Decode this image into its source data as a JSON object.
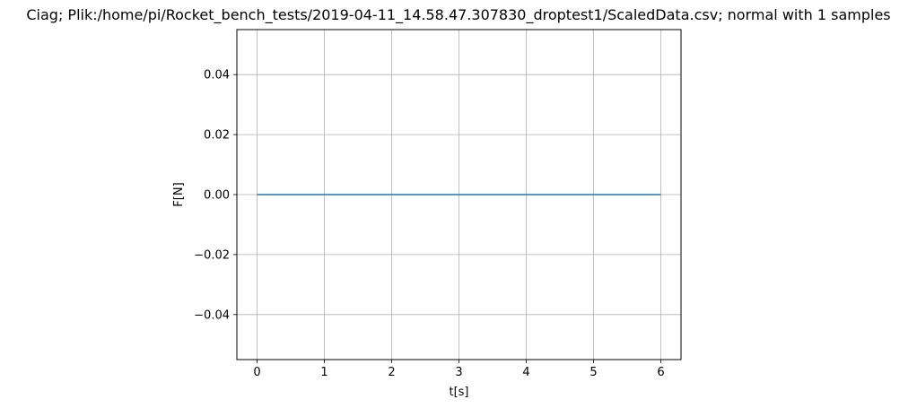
{
  "chart_data": {
    "type": "line",
    "title": "Ciag; Plik:/home/pi/Rocket_bench_tests/2019-04-11_14.58.47.307830_droptest1/ScaledData.csv; normal with 1 samples",
    "xlabel": "t[s]",
    "ylabel": "F[N]",
    "xlim": [
      -0.3,
      6.3
    ],
    "ylim": [
      -0.055,
      0.055
    ],
    "x_ticks": [
      0,
      1,
      2,
      3,
      4,
      5,
      6
    ],
    "x_tick_labels": [
      "0",
      "1",
      "2",
      "3",
      "4",
      "5",
      "6"
    ],
    "y_ticks": [
      -0.04,
      -0.02,
      0.0,
      0.02,
      0.04
    ],
    "y_tick_labels": [
      "−0.04",
      "−0.02",
      "0.00",
      "0.02",
      "0.04"
    ],
    "grid": true,
    "series": [
      {
        "color": "#1f77b4",
        "x": [
          0,
          1,
          2,
          3,
          4,
          5,
          6
        ],
        "y": [
          0,
          0,
          0,
          0,
          0,
          0,
          0
        ]
      }
    ]
  },
  "colors": {
    "grid": "#b0b0b0",
    "axes": "#000000"
  }
}
